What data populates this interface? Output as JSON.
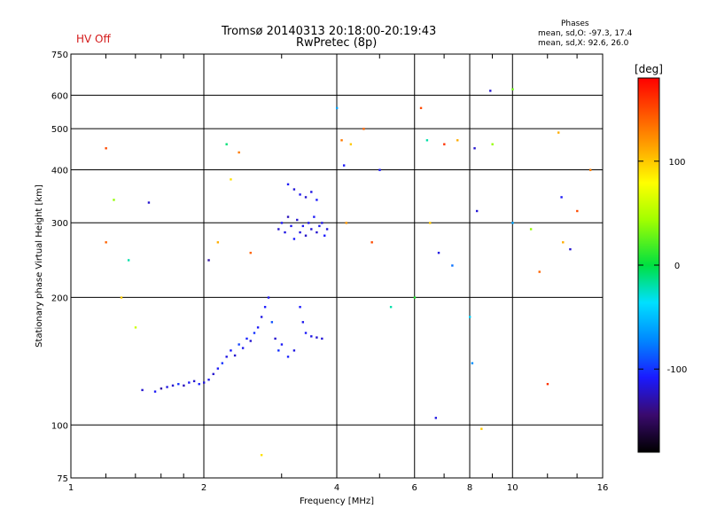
{
  "status": "HV Off",
  "header": {
    "title_line1": "Tromsø 20140313 20:18:00-20:19:43",
    "title_line2": "RwPretec (8p)"
  },
  "phase_stats": {
    "label": "Phases",
    "o_line": "mean, sd,O: -97.3, 17.4",
    "x_line": "mean, sd,X: 92.6, 26.0"
  },
  "colorbar": {
    "title": "[deg]",
    "tick_labels": [
      "100",
      "0",
      "-100"
    ],
    "ticks": [
      100,
      0,
      -100
    ],
    "range": [
      -180,
      180
    ]
  },
  "chart_data": {
    "type": "scatter",
    "xlabel": "Frequency [MHz]",
    "ylabel": "Stationary phase Virtual Height [km]",
    "xscale": "log",
    "yscale": "log",
    "xlim": [
      1,
      16
    ],
    "ylim": [
      75,
      750
    ],
    "xticks": [
      1,
      2,
      4,
      6,
      8,
      10,
      16
    ],
    "xtick_labels": [
      "1",
      "2",
      "4",
      "6",
      "8",
      "10",
      "16"
    ],
    "yticks": [
      75,
      100,
      200,
      300,
      400,
      500,
      600,
      750
    ],
    "ytick_labels": [
      "75",
      "100",
      "200",
      "300",
      "400",
      "500",
      "600",
      "750"
    ],
    "grid": true,
    "series": [
      {
        "points": [
          [
            1.45,
            121,
            -120
          ],
          [
            1.55,
            120,
            -110
          ],
          [
            1.6,
            122,
            -130
          ],
          [
            1.65,
            123,
            -115
          ],
          [
            1.7,
            124,
            -120
          ],
          [
            1.75,
            125,
            -100
          ],
          [
            1.8,
            124,
            -125
          ],
          [
            1.85,
            126,
            -110
          ],
          [
            1.9,
            127,
            -120
          ],
          [
            1.95,
            125,
            -105
          ],
          [
            2.0,
            126,
            -118
          ],
          [
            2.05,
            128,
            -112
          ],
          [
            2.1,
            132,
            -120
          ],
          [
            2.15,
            136,
            -110
          ],
          [
            2.2,
            140,
            -100
          ],
          [
            2.25,
            145,
            -115
          ],
          [
            2.3,
            150,
            -108
          ],
          [
            2.35,
            146,
            -120
          ],
          [
            2.4,
            155,
            -95
          ],
          [
            2.45,
            152,
            -112
          ],
          [
            2.5,
            160,
            -105
          ],
          [
            2.55,
            158,
            -120
          ],
          [
            2.6,
            165,
            -100
          ],
          [
            2.65,
            170,
            -110
          ],
          [
            2.7,
            180,
            -115
          ],
          [
            2.75,
            190,
            -108
          ],
          [
            2.8,
            200,
            -112
          ],
          [
            2.85,
            175,
            -90
          ],
          [
            2.9,
            160,
            -120
          ],
          [
            2.95,
            150,
            -100
          ],
          [
            3.0,
            155,
            -110
          ],
          [
            3.1,
            145,
            -105
          ],
          [
            3.2,
            150,
            -115
          ],
          [
            3.3,
            190,
            -108
          ],
          [
            3.35,
            175,
            -112
          ],
          [
            3.4,
            165,
            -110
          ],
          [
            3.5,
            162,
            -115
          ],
          [
            3.6,
            161,
            -120
          ],
          [
            3.7,
            160,
            -118
          ],
          [
            2.95,
            290,
            -120
          ],
          [
            3.0,
            300,
            -110
          ],
          [
            3.05,
            285,
            -115
          ],
          [
            3.1,
            310,
            -125
          ],
          [
            3.15,
            295,
            -112
          ],
          [
            3.2,
            275,
            -108
          ],
          [
            3.25,
            305,
            -120
          ],
          [
            3.3,
            285,
            -116
          ],
          [
            3.35,
            295,
            -110
          ],
          [
            3.4,
            280,
            -122
          ],
          [
            3.45,
            300,
            -114
          ],
          [
            3.5,
            290,
            -118
          ],
          [
            3.55,
            310,
            -110
          ],
          [
            3.6,
            285,
            -120
          ],
          [
            3.65,
            295,
            -112
          ],
          [
            3.7,
            300,
            -115
          ],
          [
            3.75,
            280,
            -108
          ],
          [
            3.8,
            290,
            -118
          ],
          [
            3.1,
            370,
            -110
          ],
          [
            3.2,
            360,
            -118
          ],
          [
            3.3,
            350,
            -112
          ],
          [
            3.4,
            345,
            -120
          ],
          [
            3.5,
            355,
            -115
          ],
          [
            3.6,
            340,
            -108
          ],
          [
            1.2,
            450,
            150
          ],
          [
            1.2,
            270,
            140
          ],
          [
            1.25,
            340,
            40
          ],
          [
            1.3,
            200,
            100
          ],
          [
            1.35,
            245,
            -20
          ],
          [
            1.4,
            170,
            60
          ],
          [
            1.5,
            335,
            -120
          ],
          [
            2.05,
            245,
            -130
          ],
          [
            2.15,
            270,
            110
          ],
          [
            2.25,
            460,
            -10
          ],
          [
            2.3,
            380,
            90
          ],
          [
            2.4,
            440,
            130
          ],
          [
            2.55,
            255,
            140
          ],
          [
            2.7,
            85,
            90
          ],
          [
            4.0,
            560,
            -60
          ],
          [
            4.1,
            470,
            130
          ],
          [
            4.15,
            410,
            -110
          ],
          [
            4.2,
            300,
            120
          ],
          [
            4.3,
            460,
            100
          ],
          [
            4.6,
            500,
            140
          ],
          [
            4.8,
            270,
            150
          ],
          [
            5.0,
            400,
            -110
          ],
          [
            5.3,
            190,
            -20
          ],
          [
            6.0,
            200,
            10
          ],
          [
            6.2,
            560,
            150
          ],
          [
            6.4,
            470,
            -20
          ],
          [
            6.5,
            300,
            100
          ],
          [
            6.7,
            104,
            -115
          ],
          [
            7.0,
            460,
            160
          ],
          [
            7.5,
            470,
            110
          ],
          [
            8.0,
            180,
            -40
          ],
          [
            8.1,
            140,
            -70
          ],
          [
            8.2,
            450,
            -120
          ],
          [
            8.3,
            320,
            -118
          ],
          [
            8.5,
            98,
            100
          ],
          [
            8.9,
            615,
            -120
          ],
          [
            9.0,
            460,
            40
          ],
          [
            10.0,
            620,
            30
          ],
          [
            10.0,
            300,
            -60
          ],
          [
            11.0,
            290,
            40
          ],
          [
            12.0,
            125,
            160
          ],
          [
            12.7,
            490,
            110
          ],
          [
            12.9,
            345,
            -110
          ],
          [
            13.0,
            270,
            110
          ],
          [
            13.5,
            260,
            -120
          ],
          [
            14.0,
            320,
            150
          ],
          [
            15.0,
            400,
            130
          ],
          [
            11.5,
            230,
            140
          ],
          [
            6.8,
            255,
            -115
          ],
          [
            7.3,
            238,
            -80
          ]
        ]
      }
    ]
  }
}
